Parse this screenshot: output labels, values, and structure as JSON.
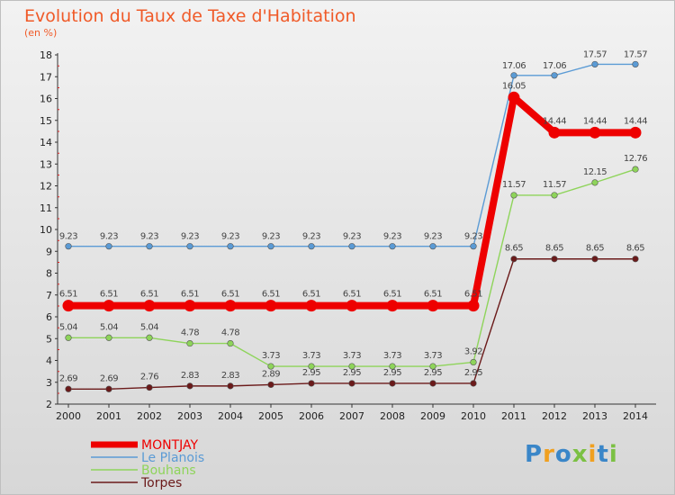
{
  "title": "Evolution du Taux de Taxe d'Habitation",
  "subtitle": "(en %)",
  "watermark": "Proxiti",
  "chart_data": {
    "type": "line",
    "x": [
      2000,
      2001,
      2002,
      2003,
      2004,
      2005,
      2006,
      2007,
      2008,
      2009,
      2010,
      2011,
      2012,
      2013,
      2014
    ],
    "ylim": [
      2,
      18
    ],
    "yticks": [
      2,
      3,
      4,
      5,
      6,
      7,
      8,
      9,
      10,
      11,
      12,
      13,
      14,
      15,
      16,
      17,
      18
    ],
    "grid": false,
    "legend_position": "bottom-left",
    "series": [
      {
        "name": "Le Planois",
        "color": "#5b9bd5",
        "values": [
          9.23,
          9.23,
          9.23,
          9.23,
          9.23,
          9.23,
          9.23,
          9.23,
          9.23,
          9.23,
          9.23,
          17.06,
          17.06,
          17.57,
          17.57
        ],
        "labels": [
          "9.23",
          "9.23",
          "9.23",
          "9.23",
          "9.23",
          "9.23",
          "9.23",
          "9.23",
          "9.23",
          "9.23",
          "9.23",
          "17.06",
          "17.06",
          "17.57",
          "17.57"
        ]
      },
      {
        "name": "Bouhans",
        "color": "#8ed45a",
        "values": [
          5.04,
          5.04,
          5.04,
          4.78,
          4.78,
          3.73,
          3.73,
          3.73,
          3.73,
          3.73,
          3.92,
          11.57,
          11.57,
          12.15,
          12.76
        ],
        "labels": [
          "5.04",
          "5.04",
          "5.04",
          "4.78",
          "4.78",
          "3.73",
          "3.73",
          "3.73",
          "3.73",
          "3.73",
          "3.92",
          "11.57",
          "11.57",
          "12.15",
          "12.76"
        ]
      },
      {
        "name": "Torpes",
        "color": "#6b1a1a",
        "values": [
          2.69,
          2.69,
          2.76,
          2.83,
          2.83,
          2.89,
          2.95,
          2.95,
          2.95,
          2.95,
          2.95,
          8.65,
          8.65,
          8.65,
          8.65
        ],
        "labels": [
          "2.69",
          "2.69",
          "2.76",
          "2.83",
          "2.83",
          "2.89",
          "2.95",
          "2.95",
          "2.95",
          "2.95",
          "2.95",
          "8.65",
          "8.65",
          "8.65",
          "8.65"
        ]
      },
      {
        "name": "MONTJAY",
        "color": "#ee0000",
        "values": [
          6.51,
          6.51,
          6.51,
          6.51,
          6.51,
          6.51,
          6.51,
          6.51,
          6.51,
          6.51,
          6.51,
          16.05,
          14.44,
          14.44,
          14.44
        ],
        "labels": [
          "6.51",
          "6.51",
          "6.51",
          "6.51",
          "6.51",
          "6.51",
          "6.51",
          "6.51",
          "6.51",
          "6.51",
          "6.51",
          "16.05",
          "14.44",
          "14.44",
          "14.44"
        ]
      }
    ],
    "legend_order": [
      "MONTJAY",
      "Le Planois",
      "Bouhans",
      "Torpes"
    ]
  }
}
